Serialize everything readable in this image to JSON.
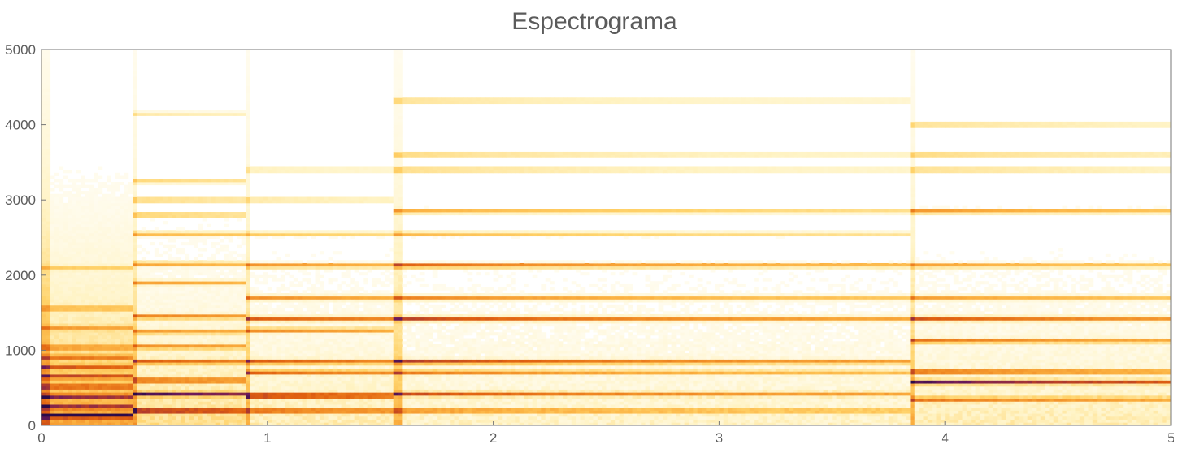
{
  "chart_data": {
    "type": "heatmap",
    "title": "Espectrograma",
    "xlabel": "",
    "ylabel": "",
    "xlim": [
      0,
      5
    ],
    "ylim": [
      0,
      5000
    ],
    "x_ticks": [
      "0",
      "1",
      "2",
      "3",
      "4",
      "5"
    ],
    "y_ticks": [
      "0",
      "1000",
      "2000",
      "3000",
      "4000",
      "5000"
    ],
    "colormap": [
      "#ffffff",
      "#fff3c4",
      "#ffd36b",
      "#fbb040",
      "#f08a24",
      "#e06010",
      "#b43c2a",
      "#6d1a5a",
      "#2a0a4a"
    ],
    "frame_color": "#777777",
    "onsets": [
      0.0,
      0.4,
      0.9,
      1.56,
      3.84
    ],
    "segments": [
      {
        "start": 0.0,
        "end": 0.4,
        "background": 0.14,
        "bands": [
          {
            "freq": 130,
            "intensity": 0.85
          },
          {
            "freq": 250,
            "intensity": 0.55
          },
          {
            "freq": 390,
            "intensity": 0.62
          },
          {
            "freq": 520,
            "intensity": 0.5
          },
          {
            "freq": 650,
            "intensity": 0.55
          },
          {
            "freq": 780,
            "intensity": 0.45
          },
          {
            "freq": 910,
            "intensity": 0.42
          },
          {
            "freq": 1040,
            "intensity": 0.38
          },
          {
            "freq": 1300,
            "intensity": 0.3
          },
          {
            "freq": 1560,
            "intensity": 0.32
          },
          {
            "freq": 2100,
            "intensity": 0.2
          }
        ]
      },
      {
        "start": 0.4,
        "end": 0.9,
        "background": 0.07,
        "bands": [
          {
            "freq": 200,
            "intensity": 0.92
          },
          {
            "freq": 420,
            "intensity": 0.82
          },
          {
            "freq": 600,
            "intensity": 0.62
          },
          {
            "freq": 850,
            "intensity": 0.6
          },
          {
            "freq": 1050,
            "intensity": 0.45
          },
          {
            "freq": 1250,
            "intensity": 0.42
          },
          {
            "freq": 1450,
            "intensity": 0.52
          },
          {
            "freq": 1900,
            "intensity": 0.38
          },
          {
            "freq": 2150,
            "intensity": 0.42
          },
          {
            "freq": 2550,
            "intensity": 0.36
          },
          {
            "freq": 2800,
            "intensity": 0.34
          },
          {
            "freq": 3000,
            "intensity": 0.3
          },
          {
            "freq": 3250,
            "intensity": 0.24
          },
          {
            "freq": 4150,
            "intensity": 0.18
          }
        ]
      },
      {
        "start": 0.9,
        "end": 1.56,
        "background": 0.05,
        "bands": [
          {
            "freq": 200,
            "intensity": 0.7
          },
          {
            "freq": 400,
            "intensity": 0.96
          },
          {
            "freq": 710,
            "intensity": 0.6
          },
          {
            "freq": 850,
            "intensity": 0.66
          },
          {
            "freq": 1270,
            "intensity": 0.5
          },
          {
            "freq": 1420,
            "intensity": 0.6
          },
          {
            "freq": 1700,
            "intensity": 0.45
          },
          {
            "freq": 2130,
            "intensity": 0.5
          },
          {
            "freq": 2550,
            "intensity": 0.3
          },
          {
            "freq": 3000,
            "intensity": 0.24
          },
          {
            "freq": 3400,
            "intensity": 0.2
          }
        ]
      },
      {
        "start": 1.56,
        "end": 3.84,
        "background": 0.04,
        "bands": [
          {
            "freq": 200,
            "intensity": 0.55
          },
          {
            "freq": 420,
            "intensity": 0.62
          },
          {
            "freq": 710,
            "intensity": 0.55
          },
          {
            "freq": 850,
            "intensity": 0.8
          },
          {
            "freq": 1420,
            "intensity": 0.7
          },
          {
            "freq": 1700,
            "intensity": 0.5
          },
          {
            "freq": 2130,
            "intensity": 0.68
          },
          {
            "freq": 2550,
            "intensity": 0.38
          },
          {
            "freq": 2850,
            "intensity": 0.42
          },
          {
            "freq": 3400,
            "intensity": 0.32
          },
          {
            "freq": 3600,
            "intensity": 0.34
          },
          {
            "freq": 4320,
            "intensity": 0.3
          }
        ]
      },
      {
        "start": 3.84,
        "end": 5.0,
        "background": 0.05,
        "bands": [
          {
            "freq": 350,
            "intensity": 0.5
          },
          {
            "freq": 580,
            "intensity": 0.86
          },
          {
            "freq": 720,
            "intensity": 0.72
          },
          {
            "freq": 1130,
            "intensity": 0.58
          },
          {
            "freq": 1420,
            "intensity": 0.62
          },
          {
            "freq": 1700,
            "intensity": 0.4
          },
          {
            "freq": 2130,
            "intensity": 0.45
          },
          {
            "freq": 2850,
            "intensity": 0.5
          },
          {
            "freq": 3400,
            "intensity": 0.3
          },
          {
            "freq": 3600,
            "intensity": 0.34
          },
          {
            "freq": 4000,
            "intensity": 0.3
          }
        ]
      }
    ]
  }
}
